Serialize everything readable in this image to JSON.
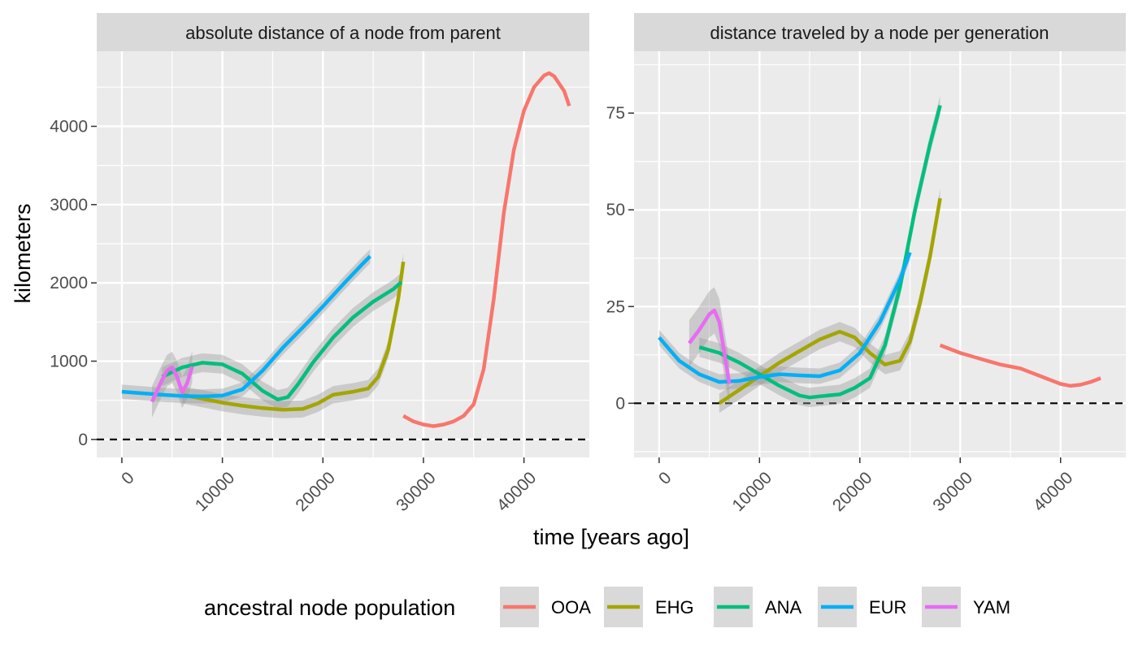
{
  "chart_data": {
    "type": "line",
    "xlabel": "time [years ago]",
    "ylabel": "kilometers",
    "legend": {
      "title": "ancestral node population",
      "position": "bottom",
      "entries": [
        "OOA",
        "EHG",
        "ANA",
        "EUR",
        "YAM"
      ]
    },
    "colors": {
      "OOA": "#F8766D",
      "EHG": "#A3A500",
      "ANA": "#00BF7D",
      "EUR": "#00B0F6",
      "YAM": "#E76BF3",
      "panel_bg": "#EBEBEB",
      "strip_bg": "#D9D9D9",
      "ribbon": "#999999"
    },
    "grid": true,
    "reference_line": {
      "y": 0,
      "style": "dashed"
    },
    "panels": [
      {
        "title": "absolute distance of a node from parent",
        "xlim": [
          -2500,
          46500
        ],
        "ylim": [
          -230,
          4960
        ],
        "x_ticks": [
          "0",
          "10000",
          "20000",
          "30000",
          "40000"
        ],
        "x_tick_values": [
          0,
          10000,
          20000,
          30000,
          40000
        ],
        "y_ticks": [
          "0",
          "1000",
          "2000",
          "3000",
          "4000"
        ],
        "y_tick_values": [
          0,
          1000,
          2000,
          3000,
          4000
        ],
        "series": [
          {
            "name": "OOA",
            "se": 0,
            "x": [
              28000,
              29000,
              30000,
              31000,
              32000,
              33000,
              34000,
              35000,
              36000,
              37000,
              38000,
              39000,
              40000,
              41000,
              42000,
              42500,
              43000,
              44000,
              44500
            ],
            "y": [
              300,
              230,
              190,
              170,
              190,
              230,
              300,
              450,
              900,
              1800,
              2900,
              3700,
              4200,
              4500,
              4650,
              4680,
              4640,
              4450,
              4260
            ]
          },
          {
            "name": "EHG",
            "se": 110,
            "x": [
              6000,
              8000,
              10000,
              12000,
              14000,
              16000,
              18000,
              19500,
              21000,
              23000,
              24500,
              25500,
              26500,
              27500,
              28000
            ],
            "y": [
              570,
              520,
              470,
              430,
              400,
              380,
              390,
              460,
              570,
              610,
              650,
              800,
              1150,
              1800,
              2270
            ]
          },
          {
            "name": "ANA",
            "se": 120,
            "x": [
              4000,
              6000,
              8000,
              10000,
              12000,
              14000,
              15500,
              16500,
              17500,
              19000,
              21000,
              23000,
              25000,
              27000,
              27800
            ],
            "y": [
              800,
              920,
              980,
              960,
              840,
              620,
              510,
              540,
              700,
              980,
              1300,
              1560,
              1760,
              1920,
              2010
            ]
          },
          {
            "name": "EUR",
            "se": 90,
            "x": [
              0,
              2000,
              4000,
              6000,
              8000,
              10000,
              12000,
              14000,
              16000,
              18000,
              20000,
              22000,
              24000,
              24700
            ],
            "y": [
              610,
              590,
              570,
              555,
              550,
              560,
              640,
              880,
              1170,
              1430,
              1700,
              1980,
              2250,
              2340
            ]
          },
          {
            "name": "YAM",
            "se": 200,
            "x": [
              3000,
              3500,
              4000,
              4500,
              5000,
              5500,
              6000,
              6500,
              7000
            ],
            "y": [
              480,
              620,
              760,
              880,
              920,
              800,
              600,
              720,
              930
            ]
          }
        ]
      },
      {
        "title": "distance traveled by a node per generation",
        "xlim": [
          -2500,
          46500
        ],
        "ylim": [
          -14,
          91
        ],
        "x_ticks": [
          "0",
          "10000",
          "20000",
          "30000",
          "40000"
        ],
        "x_tick_values": [
          0,
          10000,
          20000,
          30000,
          40000
        ],
        "y_ticks": [
          "0",
          "25",
          "50",
          "75"
        ],
        "y_tick_values": [
          0,
          25,
          50,
          75
        ],
        "series": [
          {
            "name": "OOA",
            "se": 0,
            "x": [
              28000,
              30000,
              32000,
              34000,
              36000,
              38000,
              40000,
              41000,
              42000,
              43000,
              44000
            ],
            "y": [
              15,
              13,
              11.5,
              10,
              9,
              7,
              5,
              4.5,
              4.8,
              5.5,
              6.5
            ]
          },
          {
            "name": "EHG",
            "se": 2.5,
            "x": [
              6000,
              8000,
              10000,
              12000,
              14000,
              16000,
              18000,
              19500,
              21000,
              22500,
              24000,
              25000,
              26000,
              27000,
              28000
            ],
            "y": [
              0,
              3.5,
              7,
              10.5,
              13.5,
              16.5,
              18.5,
              17,
              13,
              10,
              11,
              16,
              26,
              38,
              53
            ]
          },
          {
            "name": "ANA",
            "se": 2.5,
            "x": [
              4000,
              6000,
              8000,
              10000,
              12000,
              14000,
              15000,
              16000,
              18000,
              19500,
              21000,
              22500,
              24000,
              25500,
              27000,
              28000
            ],
            "y": [
              14.5,
              13,
              10.5,
              7.5,
              4.5,
              2,
              1.5,
              1.8,
              2.3,
              4,
              6.5,
              15,
              30,
              50,
              67,
              77
            ]
          },
          {
            "name": "EUR",
            "se": 2,
            "x": [
              0,
              1000,
              2000,
              4000,
              6000,
              8000,
              10000,
              12000,
              14000,
              16000,
              18000,
              20000,
              22000,
              24000,
              25000
            ],
            "y": [
              17,
              14,
              11,
              7.5,
              5.5,
              5.8,
              6.8,
              7.5,
              7.2,
              7.0,
              8.5,
              13,
              21,
              32,
              39
            ]
          },
          {
            "name": "YAM",
            "se": 6,
            "x": [
              3000,
              4000,
              5000,
              5500,
              6000,
              6500,
              7000
            ],
            "y": [
              15.5,
              19,
              23,
              24,
              21,
              13,
              5
            ]
          }
        ]
      }
    ]
  }
}
